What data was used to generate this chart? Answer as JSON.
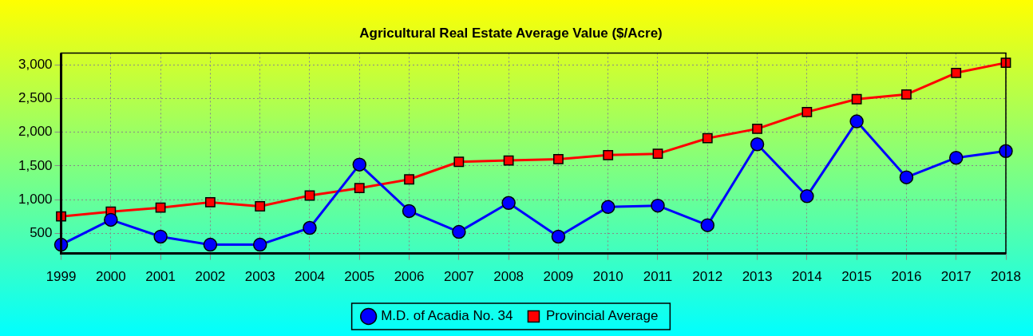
{
  "chart_data": {
    "type": "line",
    "title": "Agricultural Real Estate Average Value ($/Acre)",
    "categories": [
      "1999",
      "2000",
      "2001",
      "2002",
      "2003",
      "2004",
      "2005",
      "2006",
      "2007",
      "2008",
      "2009",
      "2010",
      "2011",
      "2012",
      "2013",
      "2014",
      "2015",
      "2016",
      "2017",
      "2018"
    ],
    "series": [
      {
        "name": "M.D. of Acadia No. 34",
        "color": "#0000ff",
        "marker": "circle",
        "values": [
          330,
          700,
          450,
          330,
          330,
          580,
          1520,
          830,
          520,
          950,
          450,
          890,
          910,
          620,
          1820,
          1050,
          2160,
          1330,
          1620,
          1720
        ]
      },
      {
        "name": "Provincial Average",
        "color": "#ff0000",
        "marker": "square",
        "values": [
          750,
          820,
          880,
          960,
          900,
          1060,
          1170,
          1300,
          1560,
          1580,
          1600,
          1660,
          1680,
          1910,
          2050,
          2300,
          2490,
          2560,
          2880,
          3030
        ]
      }
    ],
    "ylim": [
      200,
      3175
    ],
    "yticks": [
      {
        "value": 500,
        "label": "500"
      },
      {
        "value": 1000,
        "label": "1,000"
      },
      {
        "value": 1500,
        "label": "1,500"
      },
      {
        "value": 2000,
        "label": "2,000"
      },
      {
        "value": 2500,
        "label": "2,500"
      },
      {
        "value": 3000,
        "label": "3,000"
      }
    ],
    "grid": true,
    "legend": "bottom",
    "line_style": "solid"
  }
}
